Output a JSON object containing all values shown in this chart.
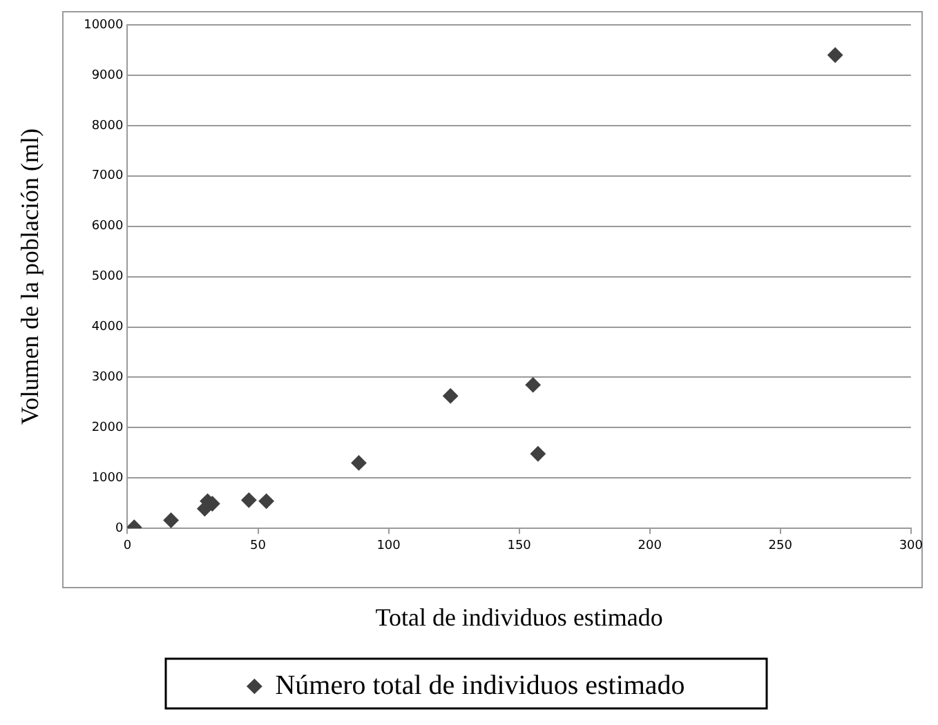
{
  "chart_data": {
    "type": "scatter",
    "xlabel": "Total de individuos estimado",
    "ylabel": "Volumen de la población (ml)",
    "x": [
      2.6,
      16.7,
      29.6,
      30.7,
      32.5,
      46.5,
      53.2,
      88.6,
      123.7,
      155.3,
      157.2,
      271
    ],
    "series": [
      {
        "name": "Número total de individuos estimado",
        "color": "#404040",
        "values": [
          20,
          160,
          390,
          540,
          490,
          560,
          540,
          1300,
          2630,
          2850,
          1480,
          9400
        ]
      }
    ],
    "xlim": [
      0,
      300
    ],
    "xticks": [
      0,
      50,
      100,
      150,
      200,
      250,
      300
    ],
    "ylim": [
      0,
      10000
    ],
    "yticks": [
      0,
      1000,
      2000,
      3000,
      4000,
      5000,
      6000,
      7000,
      8000,
      9000,
      10000
    ],
    "grid": "y",
    "legend": "bottom",
    "marker": "diamond"
  }
}
